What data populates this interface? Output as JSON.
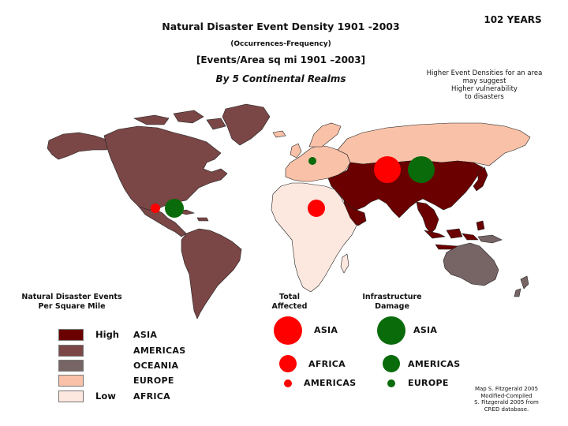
{
  "header": {
    "title": "Natural Disaster Event Density 1901 -2003",
    "subtitle": "(Occurrences-Frequency)",
    "events_area": "[Events/Area sq mi 1901 –2003]",
    "by_realms": "By 5 Continental Realms",
    "years": "102 YEARS"
  },
  "note": {
    "lines": [
      "Higher Event Densities for an area",
      "may suggest",
      "Higher vulnerability",
      "to disasters"
    ]
  },
  "colors": {
    "asia": "#6b0000",
    "americas": "#7a4646",
    "oceania": "#776464",
    "europe": "#f9c2a8",
    "africa": "#fde8df",
    "total_affected": "#ff0000",
    "infrastructure_damage": "#0a6b0a",
    "ocean": "#ffffff",
    "border": "#222222"
  },
  "density_legend": {
    "heading": [
      "Natural Disaster Events",
      "Per Square Mile"
    ],
    "high_label": "High",
    "low_label": "Low",
    "items": [
      {
        "realm": "ASIA",
        "color_key": "asia"
      },
      {
        "realm": "AMERICAS",
        "color_key": "americas"
      },
      {
        "realm": "OCEANIA",
        "color_key": "oceania"
      },
      {
        "realm": "EUROPE",
        "color_key": "europe"
      },
      {
        "realm": "AFRICA",
        "color_key": "africa"
      }
    ]
  },
  "total_affected_legend": {
    "heading": [
      "Total",
      "Affected"
    ],
    "ranking": [
      "ASIA",
      "AFRICA",
      "AMERICAS"
    ]
  },
  "infrastructure_legend": {
    "heading": [
      "Infrastructure",
      "Damage"
    ],
    "ranking": [
      "ASIA",
      "AMERICAS",
      "EUROPE"
    ]
  },
  "credit": {
    "lines": [
      "Map S. Fitzgerald 2005",
      "Modified-Compiled",
      "S. Fitzgerald 2005 from",
      "CRED database."
    ]
  }
}
